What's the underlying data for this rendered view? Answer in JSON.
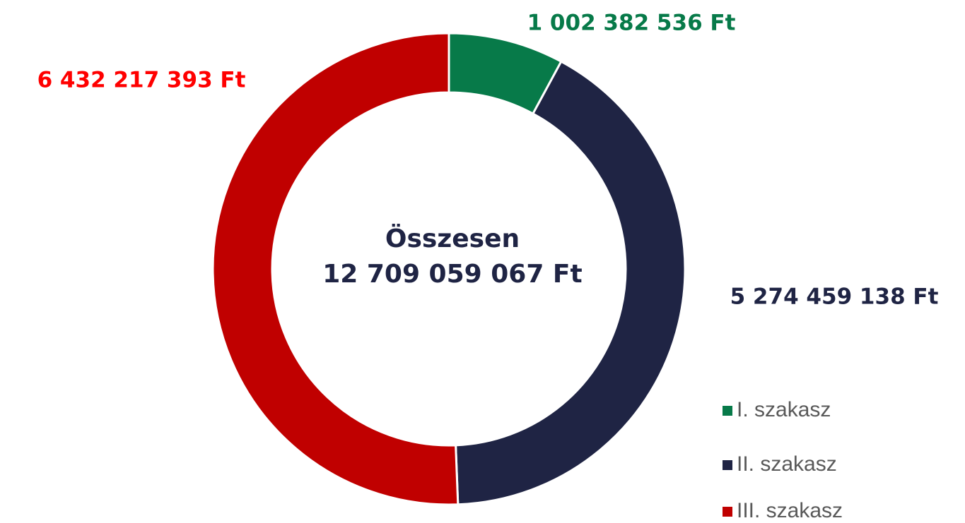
{
  "chart_data": {
    "type": "donut",
    "categories": [
      "I. szakasz",
      "II. szakasz",
      "III. szakasz"
    ],
    "values": [
      1002382536,
      5274459138,
      6432217393
    ],
    "value_labels": [
      "1 002 382 536 Ft",
      "5 274 459 138 Ft",
      "6 432 217 393 Ft"
    ],
    "colors": [
      "#077a49",
      "#1f2444",
      "#c00000"
    ],
    "label_colors": [
      "#077a49",
      "#1f2444",
      "#ff0000"
    ],
    "annotations": [
      "Összesen",
      "12 709 059 067 Ft"
    ],
    "legend": "right-bottom"
  }
}
